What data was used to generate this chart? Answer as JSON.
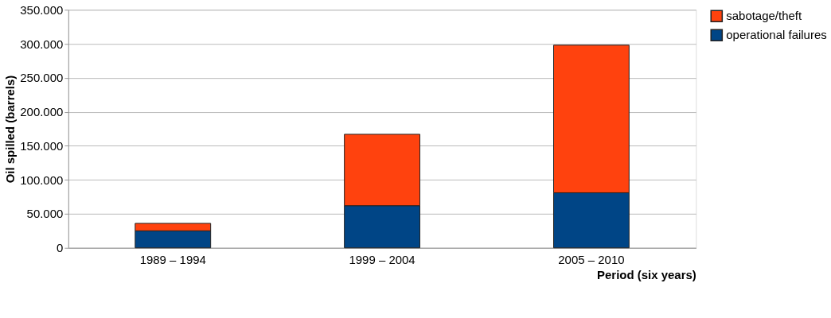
{
  "chart_data": {
    "type": "bar",
    "stacked": true,
    "xlabel": "Period (six years)",
    "ylabel": "Oil spilled (barrels)",
    "categories": [
      "1989 – 1994",
      "1999 – 2004",
      "2005 – 2010"
    ],
    "series": [
      {
        "name": "operational failures",
        "color": "#004586",
        "values": [
          25000,
          62000,
          81000
        ]
      },
      {
        "name": "sabotage/theft",
        "color": "#ff420e",
        "values": [
          11000,
          105000,
          217000
        ]
      }
    ],
    "ylim": [
      0,
      350000
    ],
    "yticks": [
      {
        "value": 0,
        "label": "0"
      },
      {
        "value": 50000,
        "label": "50.000"
      },
      {
        "value": 100000,
        "label": "100.000"
      },
      {
        "value": 150000,
        "label": "150.000"
      },
      {
        "value": 200000,
        "label": "200.000"
      },
      {
        "value": 250000,
        "label": "250.000"
      },
      {
        "value": 300000,
        "label": "300.000"
      },
      {
        "value": 350000,
        "label": "350.000"
      }
    ],
    "grid": "y",
    "legend": "right"
  }
}
